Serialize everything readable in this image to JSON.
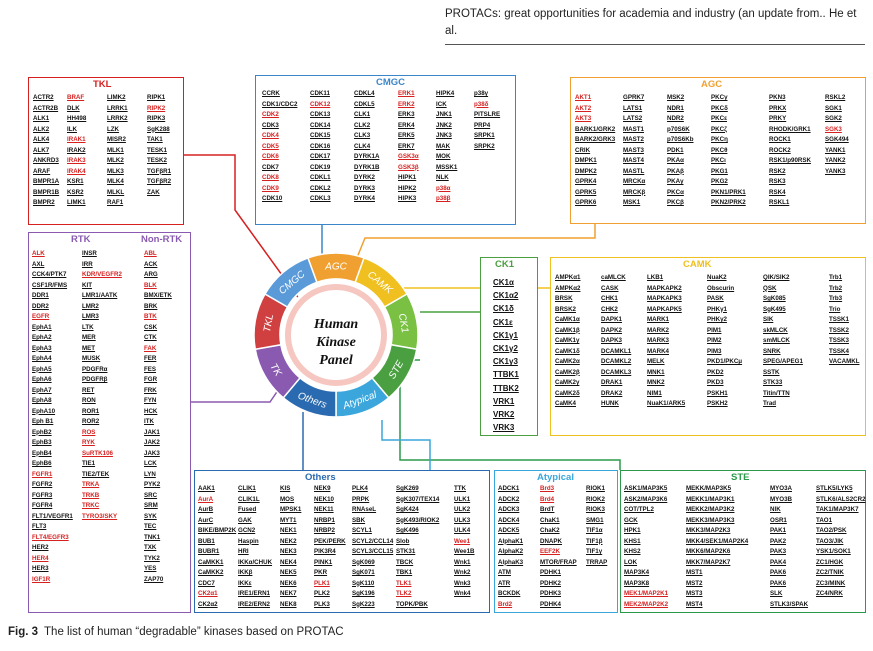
{
  "header": {
    "text": "PROTACs: great opportunities for academia and industry (an update from.. He et al."
  },
  "caption": {
    "label": "Fig. 3",
    "text": "The list of human “degradable” kinases based on PROTAC"
  },
  "wheel": {
    "center": [
      "Human",
      "Kinase",
      "Panel"
    ],
    "segments": [
      "AGC",
      "CAMK",
      "CK1",
      "STE",
      "Atypical",
      "Others",
      "TK",
      "TKL",
      "CMGC"
    ]
  },
  "groups": {
    "tkl": {
      "title": "TKL",
      "items": [
        "ACTR2",
        "BRAF",
        "LIMK2",
        "RIPK1",
        "ACTR2B",
        "DLK",
        "LRRK1",
        "RIPK2",
        "ALK1",
        "HH498",
        "LRRK2",
        "RIPK3",
        "ALK2",
        "ILK",
        "LZK",
        "SgK288",
        "ALK4",
        "IRAK1",
        "MISR2",
        "TAK1",
        "ALK7",
        "IRAK2",
        "MLK1",
        "TESK1",
        "ANKRD3",
        "IRAK3",
        "MLK2",
        "TESK2",
        "ARAF",
        "IRAK4",
        "MLK3",
        "TGFβR1",
        "BMPR1A",
        "KSR1",
        "MLK4",
        "TGFβR2",
        "BMPR1B",
        "KSR2",
        "MLKL",
        "ZAK",
        "BMPR2",
        "LIMK1",
        "RAF1",
        ""
      ],
      "red": [
        1,
        7,
        17,
        25,
        29
      ]
    },
    "cmgc": {
      "title": "CMGC",
      "items": [
        "CCRK",
        "CDK11",
        "CDKL4",
        "ERK1",
        "HIPK4",
        "p38γ",
        "CDK1/CDC2",
        "CDK12",
        "CDKL5",
        "ERK2",
        "ICK",
        "p38δ",
        "CDK2",
        "CDK13",
        "CLK1",
        "ERK3",
        "JNK1",
        "PITSLRE",
        "CDK3",
        "CDK14",
        "CLK2",
        "ERK4",
        "JNK2",
        "PRP4",
        "CDK4",
        "CDK15",
        "CLK3",
        "ERK5",
        "JNK3",
        "SRPK1",
        "CDK5",
        "CDK16",
        "CLK4",
        "ERK7",
        "MAK",
        "SRPK2",
        "CDK6",
        "CDK17",
        "DYRK1A",
        "GSK3α",
        "MOK",
        "",
        "CDK7",
        "CDK19",
        "DYRK1B",
        "GSK3β",
        "MSSK1",
        "",
        "CDK8",
        "CDKL1",
        "DYRK2",
        "HIPK1",
        "NLK",
        "",
        "CDK9",
        "CDKL2",
        "DYRK3",
        "HIPK2",
        "p38α",
        "",
        "CDK10",
        "CDKL3",
        "DYRK4",
        "HIPK3",
        "p38β",
        ""
      ],
      "red": [
        3,
        7,
        9,
        11,
        12,
        24,
        30,
        36,
        39,
        45,
        48,
        54,
        58,
        64
      ]
    },
    "agc": {
      "title": "AGC",
      "items": [
        "AKT1",
        "GPRK7",
        "MSK2",
        "PKCγ",
        "PKN3",
        "RSKL2",
        "AKT2",
        "LATS1",
        "NDR1",
        "PKCδ",
        "PRKX",
        "SGK1",
        "AKT3",
        "LATS2",
        "NDR2",
        "PKCε",
        "PRKY",
        "SGK2",
        "BARK1/GRK2",
        "MAST1",
        "p70S6K",
        "PKCζ",
        "RHODK/GRK1",
        "SGK3",
        "BARK2/GRK3",
        "MAST2",
        "p70S6Kb",
        "PKCη",
        "ROCK1",
        "SGK494",
        "CRIK",
        "MAST3",
        "PDK1",
        "PKCθ",
        "ROCK2",
        "YANK1",
        "DMPK1",
        "MAST4",
        "PKAα",
        "PKCι",
        "RSK1/p90RSK",
        "YANK2",
        "DMPK2",
        "MASTL",
        "PKAβ",
        "PKG1",
        "RSK2",
        "YANK3",
        "GPRK4",
        "MRCKα",
        "PKAγ",
        "PKG2",
        "RSK3",
        "",
        "GPRK5",
        "MRCKβ",
        "PKCα",
        "PKN1/PRK1",
        "RSK4",
        "",
        "GPRK6",
        "MSK1",
        "PKCβ",
        "PKN2/PRK2",
        "RSKL1",
        ""
      ],
      "red": [
        0,
        6,
        12,
        23
      ]
    },
    "ck1": {
      "title": "CK1",
      "items": [
        "CK1α",
        "CK1α2",
        "CK1δ",
        "CK1ε",
        "CK1γ1",
        "CK1γ2",
        "CK1γ3",
        "TTBK1",
        "TTBK2",
        "VRK1",
        "VRK2",
        "VRK3"
      ],
      "red": []
    },
    "camk": {
      "title": "CAMK",
      "items": [
        "AMPKα1",
        "caMLCK",
        "LKB1",
        "NuaK2",
        "QIK/SIK2",
        "Trb1",
        "AMPKα2",
        "CASK",
        "MAPKAPK2",
        "Obscurin",
        "QSK",
        "Trb2",
        "BRSK",
        "CHK1",
        "MAPKAPK3",
        "PASK",
        "SgK085",
        "Trb3",
        "BRSK2",
        "CHK2",
        "MAPKAPK5",
        "PHKγ1",
        "SgK495",
        "Trio",
        "CaMK1α",
        "DAPK1",
        "MARK1",
        "PHKγ2",
        "SIK",
        "TSSK1",
        "CaMK1β",
        "DAPK2",
        "MARK2",
        "PIM1",
        "skMLCK",
        "TSSK2",
        "CaMK1γ",
        "DAPK3",
        "MARK3",
        "PIM2",
        "smMLCK",
        "TSSK3",
        "CaMK1δ",
        "DCAMKL1",
        "MARK4",
        "PIM3",
        "SNRK",
        "TSSK4",
        "CaMK2α",
        "DCAMKL2",
        "MELK",
        "PKD1/PKCμ",
        "SPEG/APEG1",
        "VACAMKL",
        "CaMK2β",
        "DCAMKL3",
        "MNK1",
        "PKD2",
        "SSTK",
        "",
        "CaMK2γ",
        "DRAK1",
        "MNK2",
        "PKD3",
        "STK33",
        "",
        "CaMK2δ",
        "DRAK2",
        "NIM1",
        "PSKH1",
        "Titin/TTN",
        "",
        "CaMK4",
        "HUNK",
        "NuaK1/ARK5",
        "PSKH2",
        "Trad",
        ""
      ],
      "red": []
    },
    "rtk": {
      "title": "RTK",
      "title2": "Non-RTK",
      "items": [
        "ALK",
        "INSR",
        "ABL",
        "AXL",
        "IRR",
        "ACK",
        "CCK4/PTK7",
        "KDR/VEGFR2",
        "ARG",
        "CSF1R/FMS",
        "KIT",
        "BLK",
        "DDR1",
        "LMR1/AATK",
        "BMX/ETK",
        "DDR2",
        "LMR2",
        "BRK",
        "EGFR",
        "LMR3",
        "BTK",
        "EphA1",
        "LTK",
        "CSK",
        "EphA2",
        "MER",
        "CTK",
        "EphA3",
        "MET",
        "FAK",
        "EphA4",
        "MUSK",
        "FER",
        "EphA5",
        "PDGFRα",
        "FES",
        "EphA6",
        "PDGFRβ",
        "FGR",
        "EphA7",
        "RET",
        "FRK",
        "EphA8",
        "RON",
        "FYN",
        "EphA10",
        "ROR1",
        "HCK",
        "Eph B1",
        "ROR2",
        "ITK",
        "EphB2",
        "ROS",
        "JAK1",
        "EphB3",
        "RYK",
        "JAK2",
        "EphB4",
        "SuRTK106",
        "JAK3",
        "EphB6",
        "TIE1",
        "LCK",
        "FGFR1",
        "TIE2/TEK",
        "LYN",
        "FGFR2",
        "TRKA",
        "PYK2",
        "FGFR3",
        "TRKB",
        "SRC",
        "FGFR4",
        "TRKC",
        "SRM",
        "FLT1/VEGFR1",
        "TYRO3/SKY",
        "SYK",
        "FLT3",
        "",
        "TEC",
        "FLT4/EGFR3",
        "",
        "TNK1",
        "HER2",
        "",
        "TXK",
        "HER4",
        "",
        "TYK2",
        "HER3",
        "",
        "YES",
        "IGF1R",
        "",
        "ZAP70"
      ],
      "red": [
        0,
        2,
        7,
        11,
        18,
        20,
        29,
        52,
        55,
        58,
        63,
        67,
        70,
        73,
        76,
        81,
        87,
        93
      ]
    },
    "others": {
      "title": "Others",
      "items": [
        "AAK1",
        "CLIK1",
        "KIS",
        "NEK9",
        "PLK4",
        "SgK269",
        "TTK",
        "AurA",
        "CLIK1L",
        "MOS",
        "NEK10",
        "PRPK",
        "SgK307/TEX14",
        "ULK1",
        "AurB",
        "Fused",
        "MPSK1",
        "NEK11",
        "RNAseL",
        "SgK424",
        "ULK2",
        "AurC",
        "GAK",
        "MYT1",
        "NRBP1",
        "SBK",
        "SgK493/RIOK2",
        "ULK3",
        "BIKE/BMP2K",
        "GCN2",
        "NEK1",
        "NRBP2",
        "SCYL1",
        "SgK496",
        "ULK4",
        "BUB1",
        "Haspin",
        "NEK2",
        "PEK/PERK",
        "SCYL2/CCL14",
        "Slob",
        "Wee1",
        "BUBR1",
        "HRI",
        "NEK3",
        "PIK3R4",
        "SCYL3/CCL15",
        "STK31",
        "Wee1B",
        "CaMKK1",
        "IKKα/CHUK",
        "NEK4",
        "PINK1",
        "SgK069",
        "TBCK",
        "Wnk1",
        "CaMKK2",
        "IKKβ",
        "NEK5",
        "PKR",
        "SgK071",
        "TBK1",
        "Wnk2",
        "CDC7",
        "IKKε",
        "NEK6",
        "PLK1",
        "SgK110",
        "TLK1",
        "Wnk3",
        "CK2α1",
        "IRE1/ERN1",
        "NEK7",
        "PLK2",
        "SgK196",
        "TLK2",
        "Wnk4",
        "CK2α2",
        "IRE2/ERN2",
        "NEK8",
        "PLK3",
        "SgK223",
        "TOPK/PBK",
        ""
      ],
      "red": [
        7,
        41,
        66,
        68,
        70,
        75
      ]
    },
    "atyp": {
      "title": "Atypical",
      "items": [
        "ADCK1",
        "Brd3",
        "RIOK1",
        "ADCK2",
        "Brd4",
        "RIOK2",
        "ADCK3",
        "BrdT",
        "RIOK3",
        "ADCK4",
        "ChaK1",
        "SMG1",
        "ADCK5",
        "ChaK2",
        "TIF1α",
        "AlphaK1",
        "DNAPK",
        "TIF1β",
        "AlphaK2",
        "EEF2K",
        "TIF1γ",
        "AlphaK3",
        "MTOR/FRAP",
        "TRRAP",
        "ATM",
        "PDHK1",
        "",
        "ATR",
        "PDHK2",
        "",
        "BCKDK",
        "PDHK3",
        "",
        "Brd2",
        "PDHK4",
        ""
      ],
      "red": [
        1,
        4,
        19,
        33
      ]
    },
    "ste": {
      "title": "STE",
      "items": [
        "ASK1/MAP3K5",
        "MEKK/MAP3K5",
        "MYO3A",
        "STLK5/LYK5",
        "ASK2/MAP3K6",
        "MEKK1/MAP3K1",
        "MYO3B",
        "STLK6/ALS2CR2",
        "COT/TPL2",
        "MEKK2/MAP3K2",
        "NIK",
        "TAK1/MAP3K7",
        "GCK",
        "MEKK3/MAP3K3",
        "OSR1",
        "TAO1",
        "HPK1",
        "MKK3/MAP2K3",
        "PAK1",
        "TAO2/PSK",
        "KHS1",
        "MKK4/SEK1/MAP2K4",
        "PAK2",
        "TAO3/JIK",
        "KHS2",
        "MKK6/MAP2K6",
        "PAK3",
        "YSK1/SOK1",
        "LOK",
        "MKK7/MAP2K7",
        "PAK4",
        "ZC1/HGK",
        "MAP3K4",
        "MST1",
        "PAK6",
        "ZC2/TNIK",
        "MAP3K8",
        "MST2",
        "PAK6",
        "ZC3/MINK",
        "MEK1/MAP2K1",
        "MST3",
        "SLK",
        "ZC4/NRK",
        "MEK2/MAP2K2",
        "MST4",
        "STLK3/SPAK",
        ""
      ],
      "red": [
        40,
        44
      ]
    }
  }
}
